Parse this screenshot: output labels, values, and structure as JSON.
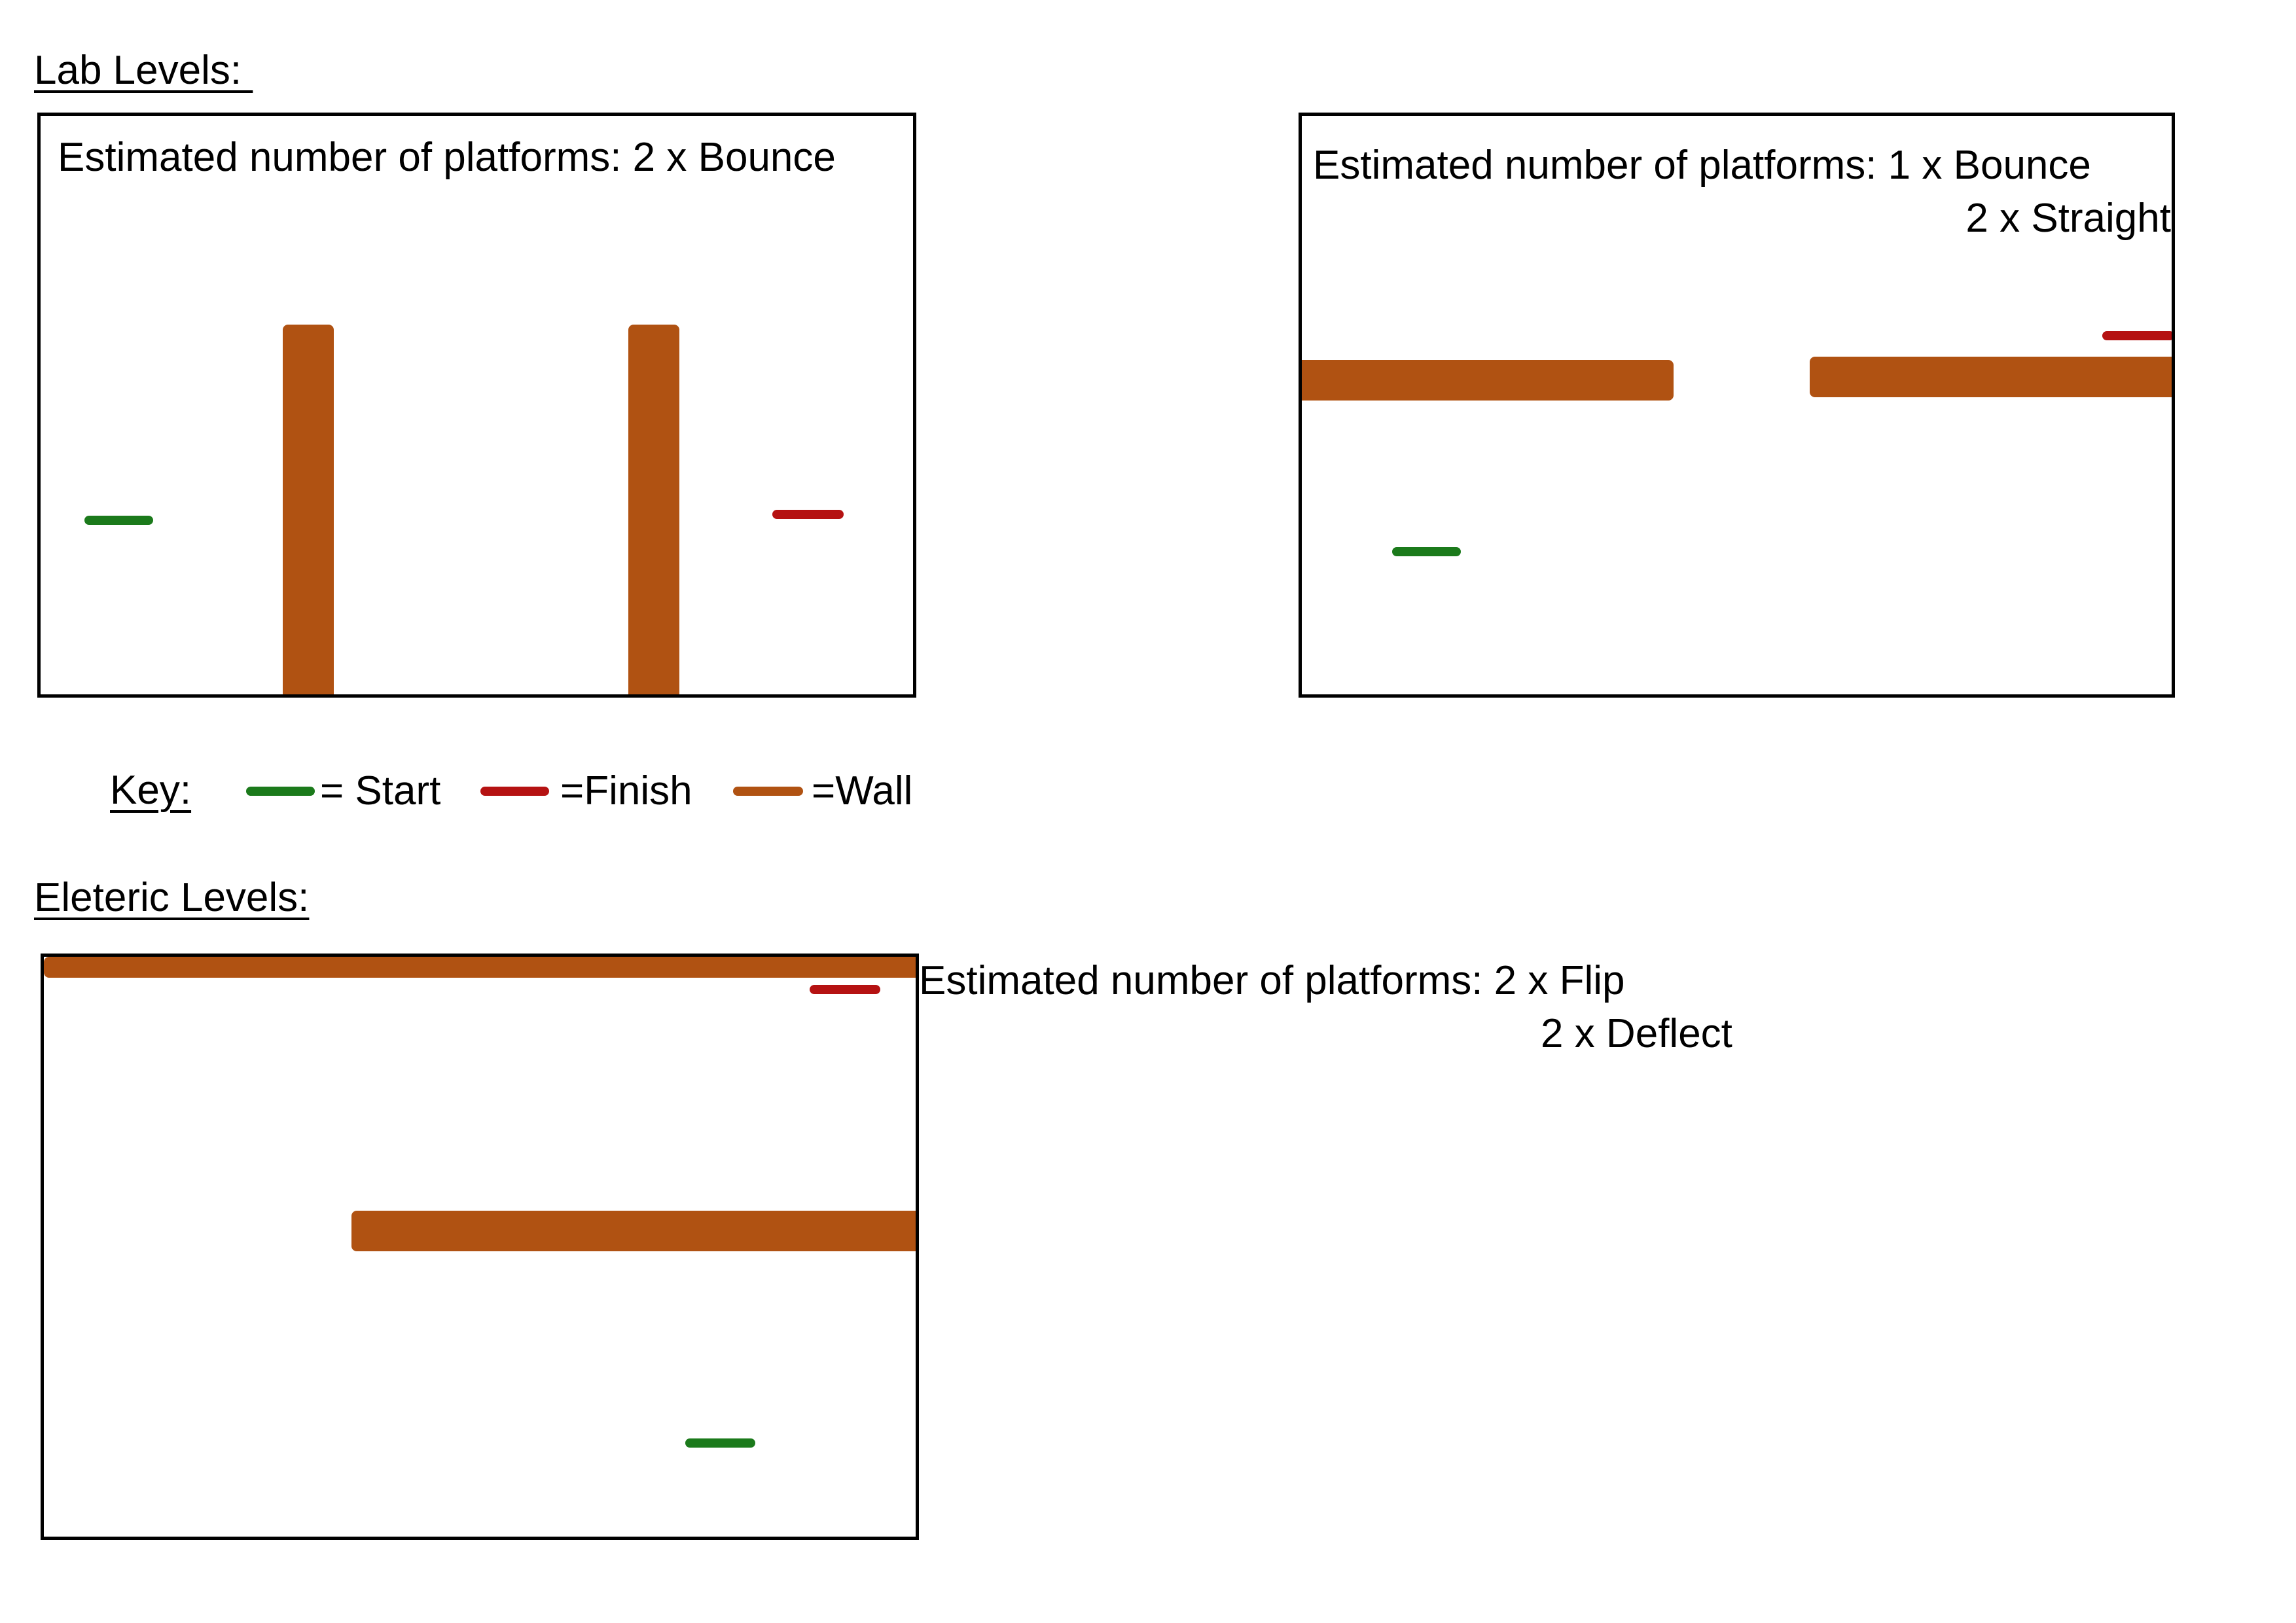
{
  "lab": {
    "heading": "Lab Levels: ",
    "level1": {
      "label": "Estimated number of platforms: 2 x Bounce"
    },
    "level2": {
      "label_line1": "Estimated number of platforms: 1 x Bounce",
      "label_line2": "2 x Straight"
    }
  },
  "key": {
    "heading": "Key:",
    "start": "= Start",
    "finish": "=Finish",
    "wall": "=Wall"
  },
  "eleteric": {
    "heading": "Eleteric Levels:",
    "level1": {
      "label_line1": "Estimated number of platforms: 2 x Flip",
      "label_line2": "2 x Deflect"
    }
  },
  "colors": {
    "start": "#1b7a1b",
    "finish": "#b51212",
    "wall": "#b05212"
  }
}
